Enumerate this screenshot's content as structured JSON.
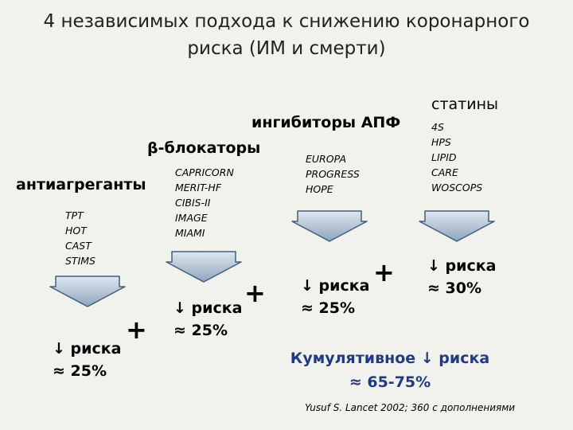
{
  "slide": {
    "title_line1": "4 независимых подхода к снижению коронарного",
    "title_line2": "риска (ИМ и смерти)"
  },
  "groups": {
    "antiplatelets": {
      "title": "антиагреганты",
      "trials": [
        "TPT",
        "HOT",
        "CAST",
        "STIMS"
      ],
      "result_line1": "↓ риска",
      "result_line2": "≈ 25%"
    },
    "beta_blockers": {
      "title": "β-блокаторы",
      "trials": [
        "CAPRICORN",
        "MERIT-HF",
        "CIBIS-II",
        "IMAGE",
        "MIAMI"
      ],
      "result_line1": "↓ риска",
      "result_line2": "≈ 25%"
    },
    "ace_inhibitors": {
      "title": "ингибиторы АПФ",
      "trials": [
        "EUROPA",
        "PROGRESS",
        "HOPE"
      ],
      "result_line1": "↓ риска",
      "result_line2": "≈ 25%"
    },
    "statins": {
      "title": "статины",
      "trials": [
        "4S",
        "HPS",
        "LIPID",
        "CARE",
        "WOSCOPS"
      ],
      "result_line1": "↓ риска",
      "result_line2": "≈ 30%"
    }
  },
  "plus_sign": "+",
  "cumulative": {
    "line1": "Кумулятивное ↓ риска",
    "line2": "≈ 65-75%"
  },
  "reference": "Yusuf S. Lancet 2002; 360 с дополнениями",
  "colors": {
    "background": "#f2f2ec",
    "arrow_fill_top": "#dfe6ee",
    "arrow_fill_bottom": "#8fa6bd",
    "arrow_stroke": "#3d5f82",
    "cumulative_text": "#1e3a8a"
  }
}
